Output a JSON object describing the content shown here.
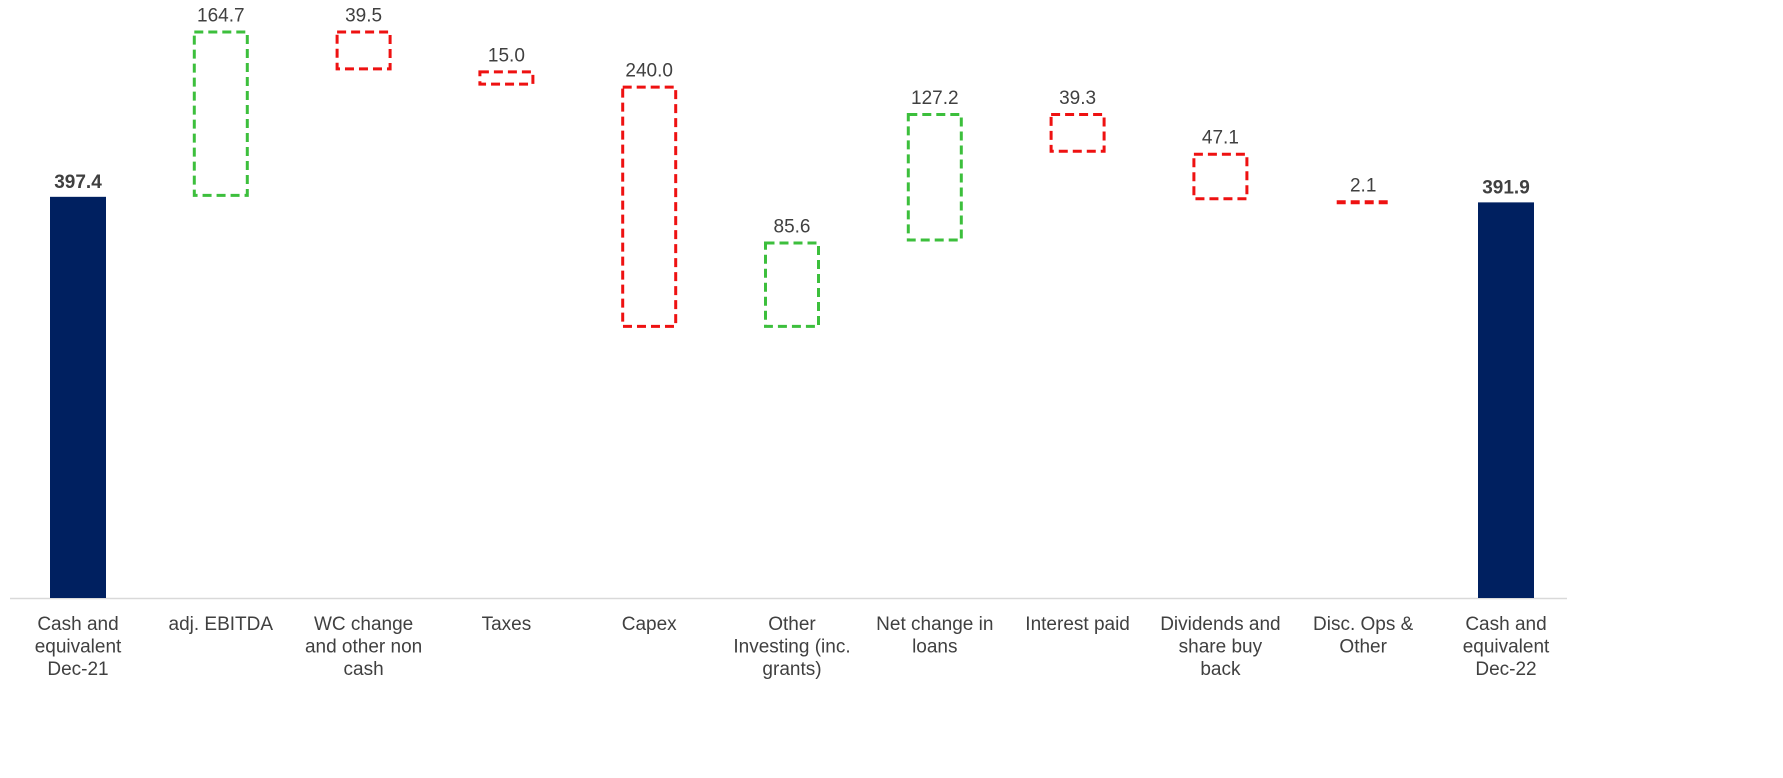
{
  "chart_data": {
    "type": "waterfall",
    "categories": [
      "Cash and equivalent Dec-21",
      "adj. EBITDA",
      "WC change and other non cash",
      "Taxes",
      "Capex",
      "Other Investing (inc. grants)",
      "Net change in loans",
      "Interest paid",
      "Dividends and share buy back",
      "Disc. Ops & Other",
      "Cash and equivalent Dec-22"
    ],
    "category_lines": [
      [
        "Cash and",
        "equivalent",
        "Dec-21"
      ],
      [
        "adj. EBITDA"
      ],
      [
        "WC change",
        "and other non",
        "cash"
      ],
      [
        "Taxes"
      ],
      [
        "Capex"
      ],
      [
        "Other",
        "Investing (inc.",
        "grants)"
      ],
      [
        "Net change in",
        "loans"
      ],
      [
        "Interest paid"
      ],
      [
        "Dividends and",
        "share buy",
        "back"
      ],
      [
        "Disc. Ops &",
        "Other"
      ],
      [
        "Cash and",
        "equivalent",
        "Dec-22"
      ]
    ],
    "values": [
      397.4,
      164.7,
      -39.5,
      -15.0,
      -240.0,
      85.6,
      127.2,
      -39.3,
      -47.1,
      -2.1,
      391.9
    ],
    "labels": [
      "397.4",
      "164.7",
      "39.5",
      "15.0",
      "240.0",
      "85.6",
      "127.2",
      "39.3",
      "47.1",
      "2.1",
      "391.9"
    ],
    "kinds": [
      "total",
      "increase",
      "decrease",
      "decrease",
      "decrease",
      "increase",
      "increase",
      "decrease",
      "decrease",
      "decrease",
      "total"
    ],
    "ylim": [
      0,
      600
    ],
    "colors": {
      "total": "#002060",
      "increase": "#3cbf3c",
      "decrease": "#ee1111",
      "axis": "#d9d9d9",
      "text": "#404040"
    },
    "grid": false,
    "legend": "none"
  }
}
